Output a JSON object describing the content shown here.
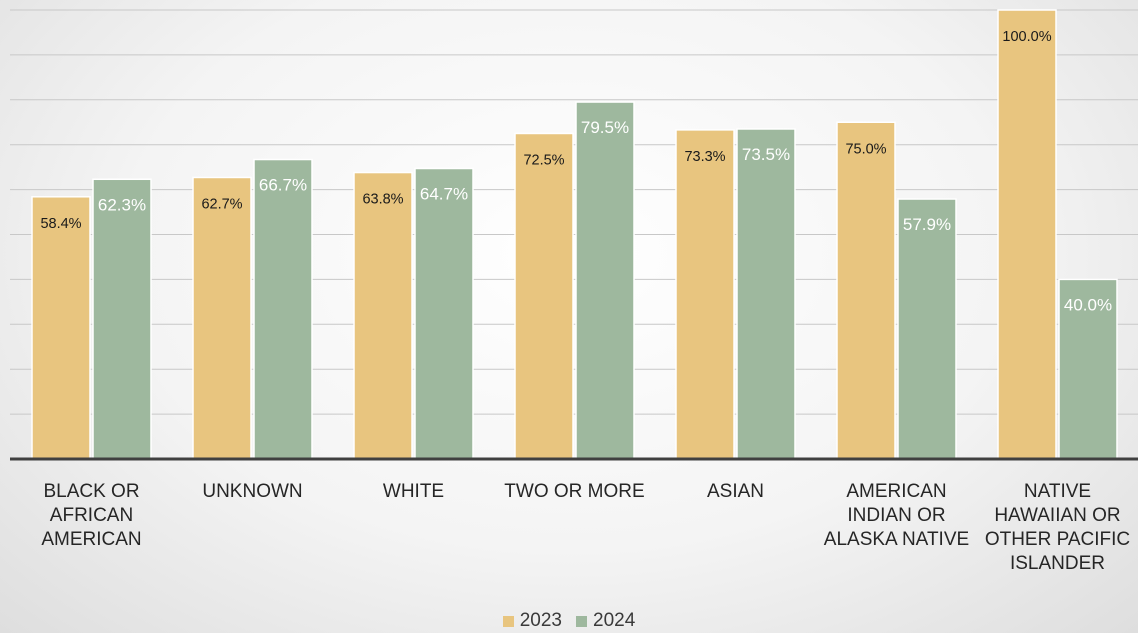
{
  "chart_data": {
    "type": "bar",
    "categories": [
      "BLACK OR\nAFRICAN\nAMERICAN",
      "UNKNOWN",
      "WHITE",
      "TWO OR MORE",
      "ASIAN",
      "AMERICAN\nINDIAN OR\nALASKA NATIVE",
      "NATIVE\nHAWAIIAN OR\nOTHER PACIFIC\nISLANDER"
    ],
    "series": [
      {
        "name": "2023",
        "values": [
          58.4,
          62.7,
          63.8,
          72.5,
          73.3,
          75.0,
          100.0
        ],
        "labels": [
          "58.4%",
          "62.7%",
          "63.8%",
          "72.5%",
          "73.3%",
          "75.0%",
          "100.0%"
        ]
      },
      {
        "name": "2024",
        "values": [
          62.3,
          66.7,
          64.7,
          79.5,
          73.5,
          57.9,
          40.0
        ],
        "labels": [
          "62.3%",
          "66.7%",
          "64.7%",
          "79.5%",
          "73.5%",
          "57.9%",
          "40.0%"
        ]
      }
    ],
    "ylim": [
      0,
      100
    ],
    "grid": true,
    "legend": "bottom",
    "title": "",
    "xlabel": "",
    "ylabel": ""
  },
  "colors": {
    "series_2023": "#e8c57f",
    "series_2024": "#9eb89e",
    "label_2023": "#1a1a1a",
    "label_2024": "#ffffff"
  }
}
